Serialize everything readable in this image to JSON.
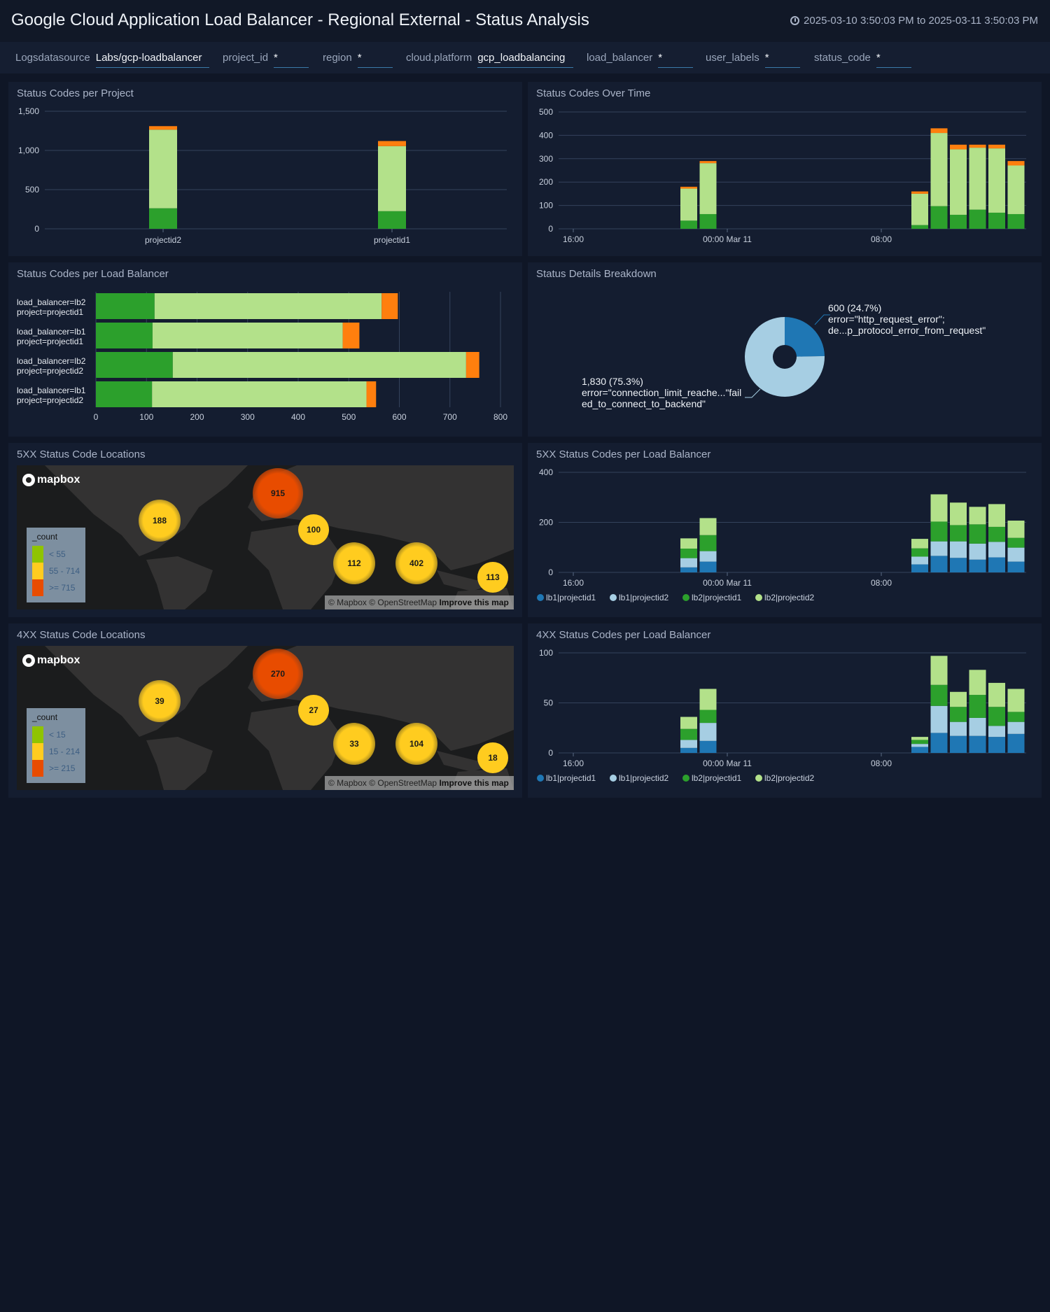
{
  "header": {
    "title": "Google Cloud Application Load Balancer - Regional External - Status Analysis",
    "time_range": "2025-03-10 3:50:03 PM to 2025-03-11 3:50:03 PM",
    "clock_icon": "clock-icon"
  },
  "filters": [
    {
      "label": "Logsdatasource",
      "value": "Labs/gcp-loadbalancer"
    },
    {
      "label": "project_id",
      "value": "*"
    },
    {
      "label": "region",
      "value": "*"
    },
    {
      "label": "cloud.platform",
      "value": "gcp_loadbalancing"
    },
    {
      "label": "load_balancer",
      "value": "*"
    },
    {
      "label": "user_labels",
      "value": "*"
    },
    {
      "label": "status_code",
      "value": "*"
    }
  ],
  "panels": {
    "per_project": {
      "title": "Status Codes per Project"
    },
    "over_time": {
      "title": "Status Codes Over Time"
    },
    "per_lb": {
      "title": "Status Codes per Load Balancer"
    },
    "breakdown": {
      "title": "Status Details Breakdown"
    },
    "loc5xx": {
      "title": "5XX Status Code Locations"
    },
    "lb5xx": {
      "title": "5XX Status Codes per Load Balancer"
    },
    "loc4xx": {
      "title": "4XX Status Code Locations"
    },
    "lb4xx": {
      "title": "4XX Status Codes per Load Balancer"
    }
  },
  "colors": {
    "dark_green": "#2ca02c",
    "light_green": "#b3e18a",
    "orange": "#ff7f0e",
    "blue": "#1f77b4",
    "light_blue": "#a6cee3"
  },
  "maps": {
    "loc5xx": {
      "logo": "mapbox",
      "attribution": "© Mapbox © OpenStreetMap",
      "improve": "Improve this map",
      "legend_title": "_count",
      "legend": [
        {
          "label": "< 55",
          "color": "#8fc400"
        },
        {
          "label": "55 - 714",
          "color": "#ffcc1f"
        },
        {
          "label": ">= 715",
          "color": "#e84c00"
        }
      ],
      "clusters": [
        {
          "value": "915",
          "level": "high"
        },
        {
          "value": "188",
          "level": "mid"
        },
        {
          "value": "100",
          "level": "mid"
        },
        {
          "value": "112",
          "level": "mid"
        },
        {
          "value": "402",
          "level": "mid"
        },
        {
          "value": "113",
          "level": "mid"
        }
      ]
    },
    "loc4xx": {
      "logo": "mapbox",
      "attribution": "© Mapbox © OpenStreetMap",
      "improve": "Improve this map",
      "legend_title": "_count",
      "legend": [
        {
          "label": "< 15",
          "color": "#8fc400"
        },
        {
          "label": "15 - 214",
          "color": "#ffcc1f"
        },
        {
          "label": ">= 215",
          "color": "#e84c00"
        }
      ],
      "clusters": [
        {
          "value": "270",
          "level": "high"
        },
        {
          "value": "39",
          "level": "mid"
        },
        {
          "value": "27",
          "level": "mid"
        },
        {
          "value": "33",
          "level": "mid"
        },
        {
          "value": "104",
          "level": "mid"
        },
        {
          "value": "18",
          "level": "mid"
        }
      ]
    }
  },
  "chart_data": [
    {
      "id": "per_project",
      "type": "bar",
      "stacked": true,
      "categories": [
        "projectid2",
        "projectid1"
      ],
      "ylim": [
        0,
        1500
      ],
      "yticks": [
        "0",
        "500",
        "1,000",
        "1,500"
      ],
      "grid": true,
      "series": [
        {
          "color": "#2ca02c",
          "values": [
            262,
            225
          ]
        },
        {
          "color": "#b3e18a",
          "values": [
            1003,
            830
          ]
        },
        {
          "color": "#ff7f0e",
          "values": [
            45,
            65
          ]
        }
      ]
    },
    {
      "id": "over_time",
      "type": "bar",
      "stacked": true,
      "x": [
        "2025-03-10 22:00",
        "2025-03-10 23:00",
        "2025-03-11 10:00",
        "2025-03-11 11:00",
        "2025-03-11 12:00",
        "2025-03-11 13:00",
        "2025-03-11 14:00",
        "2025-03-11 15:00"
      ],
      "xticks": [
        "16:00",
        "00:00 Mar 11",
        "08:00"
      ],
      "ylim": [
        0,
        500
      ],
      "yticks": [
        "0",
        "100",
        "200",
        "300",
        "400",
        "500"
      ],
      "grid": true,
      "series": [
        {
          "color": "#2ca02c",
          "values": [
            35,
            63,
            16,
            97,
            60,
            82,
            69,
            63
          ]
        },
        {
          "color": "#b3e18a",
          "values": [
            137,
            218,
            134,
            313,
            280,
            265,
            275,
            208
          ]
        },
        {
          "color": "#ff7f0e",
          "values": [
            8,
            9,
            10,
            20,
            20,
            13,
            16,
            19
          ]
        }
      ]
    },
    {
      "id": "per_lb",
      "type": "bar",
      "orientation": "horizontal",
      "stacked": true,
      "categories": [
        "load_balancer=lb2|project=projectid1",
        "load_balancer=lb1|project=projectid1",
        "load_balancer=lb2|project=projectid2",
        "load_balancer=lb1|project=projectid2"
      ],
      "xlim": [
        0,
        800
      ],
      "xticks": [
        "0",
        "100",
        "200",
        "300",
        "400",
        "500",
        "600",
        "700",
        "800"
      ],
      "grid": true,
      "series": [
        {
          "color": "#2ca02c",
          "values": [
            116,
            112,
            152,
            111
          ]
        },
        {
          "color": "#b3e18a",
          "values": [
            449,
            376,
            580,
            424
          ]
        },
        {
          "color": "#ff7f0e",
          "values": [
            32,
            33,
            26,
            19
          ]
        }
      ]
    },
    {
      "id": "breakdown",
      "type": "pie",
      "donut": true,
      "slices": [
        {
          "value": 600,
          "percent": 24.7,
          "label_value": "600 (24.7%)",
          "label_lines": [
            "error=\"http_request_error\";",
            "de...p_protocol_error_from_request\""
          ],
          "color": "#1f77b4"
        },
        {
          "value": 1830,
          "percent": 75.3,
          "label_value": "1,830 (75.3%)",
          "label_lines": [
            "error=\"connection_limit_reache...\"fail",
            "ed_to_connect_to_backend\""
          ],
          "color": "#a6cee3"
        }
      ]
    },
    {
      "id": "lb5xx",
      "type": "bar",
      "stacked": true,
      "x": [
        "2025-03-10 22:00",
        "2025-03-10 23:00",
        "2025-03-11 10:00",
        "2025-03-11 11:00",
        "2025-03-11 12:00",
        "2025-03-11 13:00",
        "2025-03-11 14:00",
        "2025-03-11 15:00"
      ],
      "xticks": [
        "16:00",
        "00:00 Mar 11",
        "08:00"
      ],
      "ylim": [
        0,
        400
      ],
      "yticks": [
        "0",
        "200",
        "400"
      ],
      "grid": true,
      "legend": "bottom",
      "series": [
        {
          "name": "lb1|projectid1",
          "color": "#1f77b4",
          "values": [
            20,
            43,
            32,
            66,
            58,
            51,
            60,
            43
          ]
        },
        {
          "name": "lb1|projectid2",
          "color": "#a6cee3",
          "values": [
            37,
            42,
            31,
            58,
            66,
            64,
            62,
            56
          ]
        },
        {
          "name": "lb2|projectid1",
          "color": "#2ca02c",
          "values": [
            38,
            64,
            33,
            79,
            65,
            77,
            60,
            39
          ]
        },
        {
          "name": "lb2|projectid2",
          "color": "#b3e18a",
          "values": [
            41,
            68,
            38,
            109,
            90,
            70,
            91,
            69
          ]
        }
      ]
    },
    {
      "id": "lb4xx",
      "type": "bar",
      "stacked": true,
      "x": [
        "2025-03-10 22:00",
        "2025-03-10 23:00",
        "2025-03-11 10:00",
        "2025-03-11 11:00",
        "2025-03-11 12:00",
        "2025-03-11 13:00",
        "2025-03-11 14:00",
        "2025-03-11 15:00"
      ],
      "xticks": [
        "16:00",
        "00:00 Mar 11",
        "08:00"
      ],
      "ylim": [
        0,
        100
      ],
      "yticks": [
        "0",
        "50",
        "100"
      ],
      "grid": true,
      "legend": "bottom",
      "series": [
        {
          "name": "lb1|projectid1",
          "color": "#1f77b4",
          "values": [
            5,
            12,
            6,
            20,
            17,
            17,
            16,
            19
          ]
        },
        {
          "name": "lb1|projectid2",
          "color": "#a6cee3",
          "values": [
            8,
            18,
            3,
            27,
            14,
            18,
            11,
            12
          ]
        },
        {
          "name": "lb2|projectid1",
          "color": "#2ca02c",
          "values": [
            11,
            13,
            4,
            21,
            15,
            23,
            19,
            10
          ]
        },
        {
          "name": "lb2|projectid2",
          "color": "#b3e18a",
          "values": [
            12,
            21,
            3,
            29,
            15,
            25,
            24,
            23
          ]
        }
      ]
    }
  ]
}
